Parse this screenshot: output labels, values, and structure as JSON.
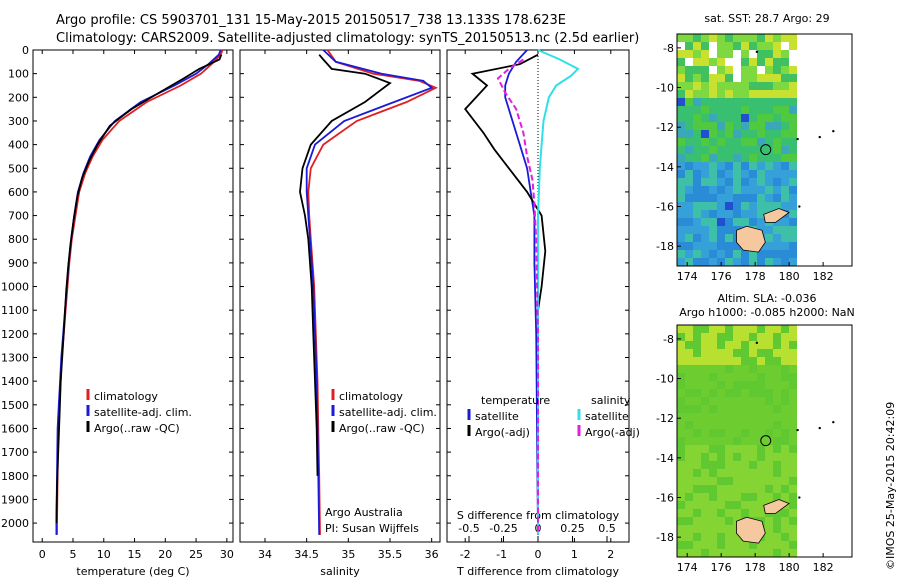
{
  "header": {
    "line1": "Argo profile: CS 5903701_131 15-May-2015 20150517_738 13.133S 178.623E",
    "line2": "Climatology: CARS2009. Satellite-adjusted climatology: synTS_20150513.nc (2.5d earlier)"
  },
  "stamp": "©IMOS 25-May-2015 20:42:09",
  "colors": {
    "climatology": "#e02020",
    "satellite": "#1a1ad8",
    "argo": "#000000",
    "satellite_s": "#30e0e8",
    "argo_s": "#e020e0",
    "land": "#f5c8a0"
  },
  "chart_data": [
    {
      "type": "line",
      "xlabel": "temperature (deg C)",
      "x_ticks": [
        "0",
        "5",
        "10",
        "15",
        "20",
        "25",
        "30"
      ],
      "y_ticks": [
        "0",
        "100",
        "200",
        "300",
        "400",
        "500",
        "600",
        "700",
        "800",
        "900",
        "1000",
        "1100",
        "1200",
        "1300",
        "1400",
        "1500",
        "1600",
        "1700",
        "1800",
        "1900",
        "2000"
      ],
      "xlim": [
        -1.5,
        31
      ],
      "ylim": [
        2080,
        0
      ],
      "legend": [
        "climatology",
        "satellite-adj. clim.",
        "Argo(..raw -QC)"
      ],
      "legend_position": "lower-center",
      "series": [
        {
          "name": "climatology",
          "color": "#e02020",
          "x": [
            29.3,
            29.0,
            27.5,
            25.8,
            22.5,
            17.0,
            12.5,
            9.8,
            8.2,
            7.0,
            6.0,
            5.4,
            4.8,
            4.4,
            4.1,
            3.8,
            3.5,
            3.2,
            3.0,
            2.8,
            2.6,
            2.5,
            2.4,
            2.4
          ],
          "y": [
            0,
            20,
            60,
            100,
            150,
            220,
            300,
            380,
            450,
            520,
            600,
            700,
            800,
            900,
            1000,
            1100,
            1200,
            1300,
            1400,
            1500,
            1600,
            1800,
            2000,
            2050
          ]
        },
        {
          "name": "satellite-adj. clim.",
          "color": "#1a1ad8",
          "x": [
            29.0,
            28.7,
            27.0,
            25.0,
            21.5,
            16.0,
            11.8,
            9.3,
            7.8,
            6.7,
            5.8,
            5.2,
            4.7,
            4.3,
            4.0,
            3.7,
            3.4,
            3.1,
            2.9,
            2.7,
            2.5,
            2.4,
            2.3,
            2.3
          ],
          "y": [
            0,
            20,
            60,
            100,
            150,
            220,
            300,
            380,
            450,
            520,
            600,
            700,
            800,
            900,
            1000,
            1100,
            1200,
            1300,
            1400,
            1500,
            1600,
            1800,
            2000,
            2050
          ]
        },
        {
          "name": "Argo(..raw -QC)",
          "color": "#000000",
          "x": [
            29.1,
            28.8,
            25.5,
            23.0,
            19.0,
            14.5,
            11.0,
            9.0,
            7.6,
            6.5,
            5.7,
            5.1,
            4.6,
            4.2,
            3.9,
            3.6,
            3.3,
            3.0,
            2.8,
            2.6,
            2.4,
            2.3
          ],
          "y": [
            20,
            40,
            80,
            120,
            180,
            250,
            320,
            400,
            470,
            540,
            620,
            720,
            820,
            920,
            1020,
            1150,
            1280,
            1400,
            1550,
            1700,
            1850,
            2000
          ]
        }
      ]
    },
    {
      "type": "line",
      "xlabel": "salinity",
      "x_ticks": [
        "34",
        "34.5",
        "35",
        "35.5",
        "36"
      ],
      "xlim": [
        33.7,
        36.1
      ],
      "ylim": [
        2080,
        0
      ],
      "legend": [
        "climatology",
        "satellite-adj. clim.",
        "Argo(..raw -QC)"
      ],
      "legend_position": "lower-center",
      "annotation": [
        "Argo Australia",
        "PI: Susan Wijffels"
      ],
      "series": [
        {
          "name": "climatology",
          "color": "#e02020",
          "x": [
            34.75,
            34.85,
            35.3,
            35.85,
            36.05,
            35.7,
            35.1,
            34.7,
            34.55,
            34.52,
            34.53,
            34.55,
            34.57,
            34.59,
            34.61,
            34.63,
            34.64,
            34.65,
            34.66
          ],
          "y": [
            0,
            50,
            100,
            130,
            160,
            220,
            300,
            400,
            500,
            600,
            700,
            800,
            900,
            1000,
            1200,
            1400,
            1600,
            1800,
            2050
          ]
        },
        {
          "name": "satellite-adj. clim.",
          "color": "#1a1ad8",
          "x": [
            34.7,
            34.85,
            35.4,
            35.9,
            36.0,
            35.55,
            34.95,
            34.6,
            34.5,
            34.5,
            34.52,
            34.54,
            34.56,
            34.58,
            34.6,
            34.62,
            34.63,
            34.64,
            34.65
          ],
          "y": [
            0,
            50,
            100,
            130,
            160,
            220,
            300,
            400,
            500,
            600,
            700,
            800,
            900,
            1000,
            1200,
            1400,
            1600,
            1800,
            2050
          ]
        },
        {
          "name": "Argo(..raw -QC)",
          "color": "#000000",
          "x": [
            34.65,
            34.7,
            34.8,
            35.2,
            35.5,
            35.2,
            34.8,
            34.55,
            34.45,
            34.42,
            34.48,
            34.52,
            34.54,
            34.56,
            34.58,
            34.6,
            34.62,
            34.63
          ],
          "y": [
            20,
            40,
            80,
            100,
            140,
            220,
            300,
            400,
            500,
            600,
            700,
            800,
            900,
            1000,
            1200,
            1400,
            1600,
            1800
          ]
        }
      ]
    },
    {
      "type": "line",
      "xlabel": "T difference from climatology",
      "x2label": "S difference from climatology",
      "x_ticks": [
        "-2",
        "-1",
        "0",
        "1",
        "2"
      ],
      "x2_ticks": [
        "-0.5",
        "-0.25",
        "0",
        "0.25",
        "0.5"
      ],
      "xlim": [
        -2.5,
        2.5
      ],
      "ylim": [
        2080,
        0
      ],
      "legend": [
        "temperature",
        "satellite",
        "Argo(-adj)",
        "salinity",
        "satellite",
        "Argo(-adj)"
      ],
      "series": [
        {
          "name": "satellite",
          "group": "temperature",
          "color": "#1a1ad8",
          "x": [
            -0.3,
            -0.6,
            -0.8,
            -0.9,
            -0.9,
            -0.7,
            -0.5,
            -0.3,
            -0.2,
            -0.1,
            -0.1,
            -0.05,
            0
          ],
          "y": [
            0,
            50,
            100,
            150,
            200,
            300,
            400,
            500,
            600,
            700,
            900,
            1200,
            2050
          ]
        },
        {
          "name": "Argo(-adj)",
          "group": "temperature",
          "color": "#000000",
          "x": [
            0,
            -0.5,
            -1.8,
            -1.4,
            -2.0,
            -1.5,
            -1.2,
            -0.8,
            -0.3,
            0.1,
            0.2,
            0.1,
            0
          ],
          "y": [
            20,
            60,
            100,
            150,
            250,
            350,
            420,
            500,
            600,
            700,
            850,
            1000,
            1100
          ]
        },
        {
          "name": "satellite",
          "group": "salinity",
          "color": "#30e0e8",
          "x": [
            0,
            0.6,
            1.1,
            0.9,
            0.5,
            0.3,
            0.15,
            0.1,
            0.05,
            0,
            0,
            0
          ],
          "y": [
            0,
            40,
            80,
            110,
            150,
            200,
            300,
            400,
            500,
            700,
            1200,
            2050
          ]
        },
        {
          "name": "Argo(-adj)",
          "group": "salinity",
          "color": "#e020e0",
          "x": [
            -0.4,
            -0.8,
            -1.1,
            -0.9,
            -0.6,
            -0.4,
            -0.3,
            -0.15,
            -0.1,
            -0.05,
            0,
            0
          ],
          "y": [
            40,
            80,
            120,
            180,
            250,
            350,
            450,
            550,
            650,
            800,
            1200,
            2050
          ]
        }
      ]
    }
  ],
  "maps": [
    {
      "title": "sat. SST: 28.7 Argo: 29",
      "x_ticks": [
        "174",
        "176",
        "178",
        "180",
        "182"
      ],
      "y_ticks": [
        "-8",
        "-10",
        "-12",
        "-14",
        "-16",
        "-18"
      ]
    },
    {
      "title": "Altim. SLA: -0.036",
      "subtitle": "Argo h1000: -0.085 h2000: NaN",
      "x_ticks": [
        "174",
        "176",
        "178",
        "180",
        "182"
      ],
      "y_ticks": [
        "-8",
        "-10",
        "-12",
        "-14",
        "-16",
        "-18"
      ]
    }
  ]
}
